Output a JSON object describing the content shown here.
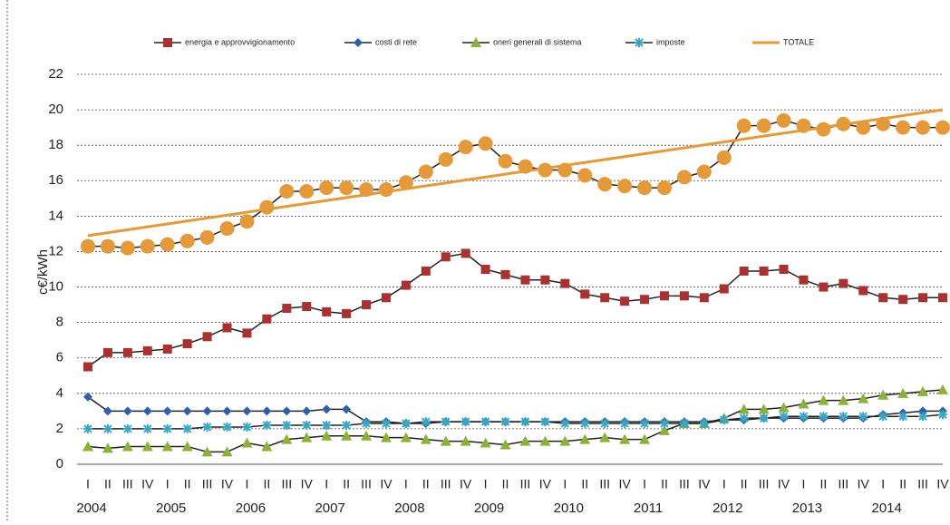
{
  "chart_data": {
    "type": "line",
    "y_label": "c€/kWh",
    "categories": [
      "I",
      "II",
      "III",
      "IV",
      "I",
      "II",
      "III",
      "IV",
      "I",
      "II",
      "III",
      "IV",
      "I",
      "II",
      "III",
      "IV",
      "I",
      "II",
      "III",
      "IV",
      "I",
      "II",
      "III",
      "IV",
      "I",
      "II",
      "III",
      "IV",
      "I",
      "II",
      "III",
      "IV",
      "I",
      "II",
      "III",
      "IV",
      "I",
      "II",
      "III",
      "IV",
      "I",
      "II",
      "III",
      "IV"
    ],
    "groups": [
      "2004",
      "2005",
      "2006",
      "2007",
      "2008",
      "2009",
      "2010",
      "2011",
      "2012",
      "2013",
      "2014"
    ],
    "ylim": [
      0,
      22
    ],
    "yticks": [
      0,
      2,
      4,
      6,
      8,
      10,
      12,
      14,
      16,
      18,
      20,
      22
    ],
    "grid": true,
    "series": [
      {
        "name": "energia e approvvigionamento",
        "color": "#a83232",
        "line": "#222",
        "marker": "square",
        "values": [
          5.5,
          6.3,
          6.3,
          6.4,
          6.5,
          6.8,
          7.2,
          7.7,
          7.4,
          8.2,
          8.8,
          8.9,
          8.6,
          8.5,
          9.0,
          9.4,
          10.1,
          10.9,
          11.7,
          11.9,
          11.0,
          10.7,
          10.4,
          10.4,
          10.2,
          9.6,
          9.4,
          9.2,
          9.3,
          9.5,
          9.5,
          9.4,
          9.9,
          10.9,
          10.9,
          11.0,
          10.4,
          10.0,
          10.2,
          9.8,
          9.4,
          9.3,
          9.4,
          9.4
        ]
      },
      {
        "name": "costi di rete",
        "color": "#2f5fa8",
        "line": "#222",
        "marker": "diamond",
        "values": [
          3.8,
          3.0,
          3.0,
          3.0,
          3.0,
          3.0,
          3.0,
          3.0,
          3.0,
          3.0,
          3.0,
          3.0,
          3.1,
          3.1,
          2.4,
          2.4,
          2.3,
          2.3,
          2.4,
          2.4,
          2.4,
          2.4,
          2.4,
          2.4,
          2.4,
          2.4,
          2.4,
          2.4,
          2.4,
          2.4,
          2.4,
          2.4,
          2.5,
          2.5,
          2.6,
          2.6,
          2.6,
          2.6,
          2.6,
          2.6,
          2.8,
          2.9,
          3.0,
          3.0
        ]
      },
      {
        "name": "oneri generali di sistema",
        "color": "#8bb13a",
        "line": "#222",
        "marker": "triangle",
        "values": [
          1.0,
          0.9,
          1.0,
          1.0,
          1.0,
          1.0,
          0.7,
          0.7,
          1.2,
          1.0,
          1.4,
          1.5,
          1.6,
          1.6,
          1.6,
          1.5,
          1.5,
          1.4,
          1.3,
          1.3,
          1.2,
          1.1,
          1.3,
          1.3,
          1.3,
          1.4,
          1.5,
          1.4,
          1.4,
          1.9,
          2.3,
          2.3,
          2.6,
          3.1,
          3.1,
          3.2,
          3.4,
          3.6,
          3.6,
          3.7,
          3.9,
          4.0,
          4.1,
          4.2
        ]
      },
      {
        "name": "imposte",
        "color": "#3aa6c4",
        "line": "#222",
        "marker": "star",
        "values": [
          2.0,
          2.0,
          2.0,
          2.0,
          2.0,
          2.0,
          2.1,
          2.1,
          2.1,
          2.2,
          2.2,
          2.2,
          2.2,
          2.2,
          2.3,
          2.3,
          2.3,
          2.4,
          2.4,
          2.4,
          2.4,
          2.4,
          2.4,
          2.4,
          2.3,
          2.3,
          2.3,
          2.3,
          2.3,
          2.3,
          2.3,
          2.3,
          2.5,
          2.6,
          2.6,
          2.7,
          2.7,
          2.7,
          2.7,
          2.7,
          2.7,
          2.7,
          2.7,
          2.8
        ]
      },
      {
        "name": "TOTALE",
        "color": "#e49a3a",
        "line": "#222",
        "marker": "circle",
        "trendline": [
          12.9,
          20.0
        ],
        "values": [
          12.3,
          12.3,
          12.2,
          12.3,
          12.4,
          12.6,
          12.8,
          13.3,
          13.7,
          14.5,
          15.4,
          15.4,
          15.6,
          15.6,
          15.5,
          15.5,
          15.9,
          16.5,
          17.2,
          17.9,
          18.1,
          17.1,
          16.8,
          16.6,
          16.6,
          16.3,
          15.8,
          15.7,
          15.6,
          15.6,
          16.2,
          16.5,
          17.3,
          19.1,
          19.1,
          19.4,
          19.1,
          18.9,
          19.2,
          19.0,
          19.2,
          19.0,
          19.0,
          19.0
        ]
      }
    ]
  }
}
